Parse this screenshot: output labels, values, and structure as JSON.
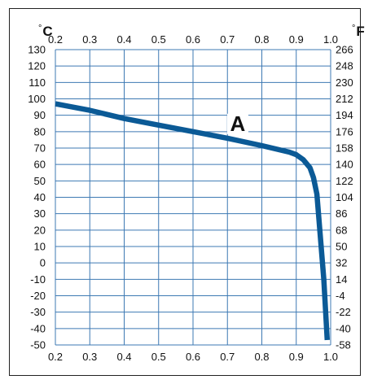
{
  "chart_data": {
    "type": "line",
    "units": {
      "left_symbol": "°",
      "left": "C",
      "right_symbol": "°",
      "right": "F"
    },
    "x_ticks": [
      "0.2",
      "0.3",
      "0.4",
      "0.5",
      "0.6",
      "0.7",
      "0.8",
      "0.9",
      "1.0"
    ],
    "xlim": [
      0.2,
      1.0
    ],
    "y_left_ticks": [
      "130",
      "120",
      "110",
      "100",
      "90",
      "80",
      "70",
      "60",
      "50",
      "40",
      "30",
      "20",
      "10",
      "0",
      "-10",
      "-20",
      "-30",
      "-40",
      "-50"
    ],
    "ylim": [
      -50,
      130
    ],
    "y_right_ticks": [
      "266",
      "248",
      "230",
      "212",
      "194",
      "176",
      "158",
      "140",
      "122",
      "104",
      "86",
      "68",
      "50",
      "32",
      "14",
      "-4",
      "-22",
      "-40",
      "-58"
    ],
    "grid": true,
    "series": [
      {
        "name": "A",
        "color": "#0b5a96",
        "x": [
          0.2,
          0.3,
          0.4,
          0.5,
          0.6,
          0.7,
          0.8,
          0.88,
          0.9,
          0.92,
          0.94,
          0.95,
          0.96,
          0.98,
          0.99
        ],
        "y": [
          97,
          93,
          88,
          84,
          80,
          76,
          71.5,
          67.5,
          66,
          63,
          58,
          52,
          42,
          -10,
          -47
        ]
      }
    ],
    "annotations": [
      {
        "text": "A",
        "x": 0.73,
        "y": 80.5
      }
    ]
  }
}
